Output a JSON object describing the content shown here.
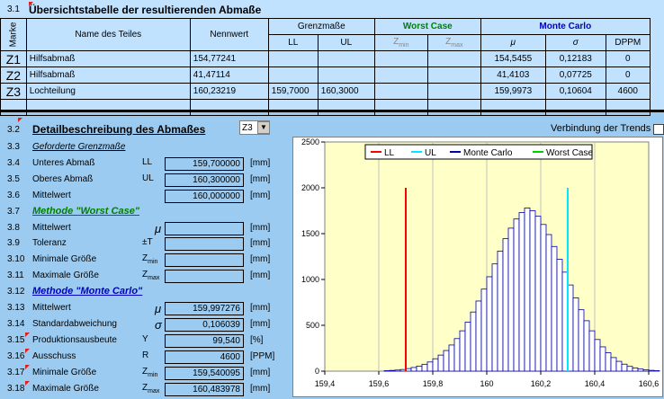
{
  "colors": {
    "ll": "#ff0000",
    "ul": "#00e8ff",
    "monte": "#0000a0",
    "worst": "#00d000",
    "plot_bg": "#ffffc8"
  },
  "section1": {
    "num": "3.1",
    "title": "Übersichtstabelle der resultierenden Abmaße",
    "headers": {
      "marke": "Marke",
      "name": "Name des Teiles",
      "nennwert": "Nennwert",
      "grenzmasse": "Grenzmaße",
      "ll": "LL",
      "ul": "UL",
      "worst": "Worst Case",
      "zmin": "Z",
      "zmin_sub": "min",
      "zmax": "Z",
      "zmax_sub": "max",
      "monte": "Monte Carlo",
      "mu": "μ",
      "sigma": "σ",
      "dppm": "DPPM"
    },
    "rows": [
      {
        "id": "Z1",
        "name": "Hilfsabmaß",
        "nenn": "154,77241",
        "ll": "",
        "ul": "",
        "zmin": "",
        "zmax": "",
        "mu": "154,5455",
        "sigma": "0,12183",
        "dppm": "0"
      },
      {
        "id": "Z2",
        "name": "Hilfsabmaß",
        "nenn": "41,47114",
        "ll": "",
        "ul": "",
        "zmin": "",
        "zmax": "",
        "mu": "41,4103",
        "sigma": "0,07725",
        "dppm": "0"
      },
      {
        "id": "Z3",
        "name": "Lochteilung",
        "nenn": "160,23219",
        "ll": "159,7000",
        "ul": "160,3000",
        "zmin": "",
        "zmax": "",
        "mu": "159,9973",
        "sigma": "0,10604",
        "dppm": "4600"
      }
    ]
  },
  "section2": {
    "num": "3.2",
    "title": "Detailbeschreibung des Abmaßes",
    "select": "Z3",
    "trend_label": "Verbindung der Trends",
    "items": [
      {
        "num": "3.3",
        "label": "Geforderte Grenzmaße",
        "kind": "sub"
      },
      {
        "num": "3.4",
        "label": "Unteres Abmaß",
        "sym": "LL",
        "value": "159,700000",
        "unit": "[mm]"
      },
      {
        "num": "3.5",
        "label": "Oberes Abmaß",
        "sym": "UL",
        "value": "160,300000",
        "unit": "[mm]"
      },
      {
        "num": "3.6",
        "label": "Mittelwert",
        "sym": "",
        "value": "160,000000",
        "unit": "[mm]"
      },
      {
        "num": "3.7",
        "label": "Methode \"Worst Case\"",
        "kind": "method_wc"
      },
      {
        "num": "3.8",
        "label": "Mittelwert",
        "sym": "μ",
        "value": "",
        "unit": "[mm]"
      },
      {
        "num": "3.9",
        "label": "Toleranz",
        "sym": "±T",
        "value": "",
        "unit": "[mm]"
      },
      {
        "num": "3.10",
        "label": "Minimale Größe",
        "sym": "Z",
        "sub": "min",
        "value": "",
        "unit": "[mm]"
      },
      {
        "num": "3.11",
        "label": "Maximale Größe",
        "sym": "Z",
        "sub": "max",
        "value": "",
        "unit": "[mm]"
      },
      {
        "num": "3.12",
        "label": "Methode \"Monte Carlo\"",
        "kind": "method_mc"
      },
      {
        "num": "3.13",
        "label": "Mittelwert",
        "sym": "μ",
        "value": "159,997276",
        "unit": "[mm]"
      },
      {
        "num": "3.14",
        "label": "Standardabweichung",
        "sym": "σ",
        "value": "0,106039",
        "unit": "[mm]"
      },
      {
        "num": "3.15",
        "label": "Produktionsausbeute",
        "sym": "Y",
        "value": "99,540",
        "unit": "[%]"
      },
      {
        "num": "3.16",
        "label": "Ausschuss",
        "sym": "R",
        "value": "4600",
        "unit": "[PPM]"
      },
      {
        "num": "3.17",
        "label": "Minimale Größe",
        "sym": "Z",
        "sub": "min",
        "value": "159,540095",
        "unit": "[mm]"
      },
      {
        "num": "3.18",
        "label": "Maximale Größe",
        "sym": "Z",
        "sub": "max",
        "value": "160,483978",
        "unit": "[mm]"
      }
    ]
  },
  "chart_data": {
    "type": "bar",
    "legend": [
      "LL",
      "UL",
      "Monte Carlo",
      "Worst Case"
    ],
    "legend_position": "top-center",
    "xlim": [
      159.4,
      160.6
    ],
    "ylim": [
      0,
      2500
    ],
    "xticks": [
      "159,4",
      "159,6",
      "159,8",
      "160",
      "160,2",
      "160,4",
      "160,6"
    ],
    "yticks": [
      "0",
      "500",
      "1000",
      "1500",
      "2000",
      "2500"
    ],
    "ll": 159.7,
    "ul": 160.3,
    "ll_height": 2000,
    "ul_height": 2000,
    "bin_width": 0.02,
    "bin_start": 159.62,
    "values": [
      5,
      8,
      12,
      18,
      28,
      40,
      55,
      75,
      100,
      135,
      175,
      225,
      285,
      355,
      440,
      535,
      645,
      765,
      895,
      1030,
      1170,
      1310,
      1445,
      1560,
      1660,
      1730,
      1780,
      1750,
      1690,
      1600,
      1490,
      1360,
      1220,
      1080,
      940,
      800,
      670,
      550,
      440,
      345,
      265,
      200,
      148,
      107,
      76,
      52,
      35,
      23,
      15,
      9,
      5
    ]
  }
}
